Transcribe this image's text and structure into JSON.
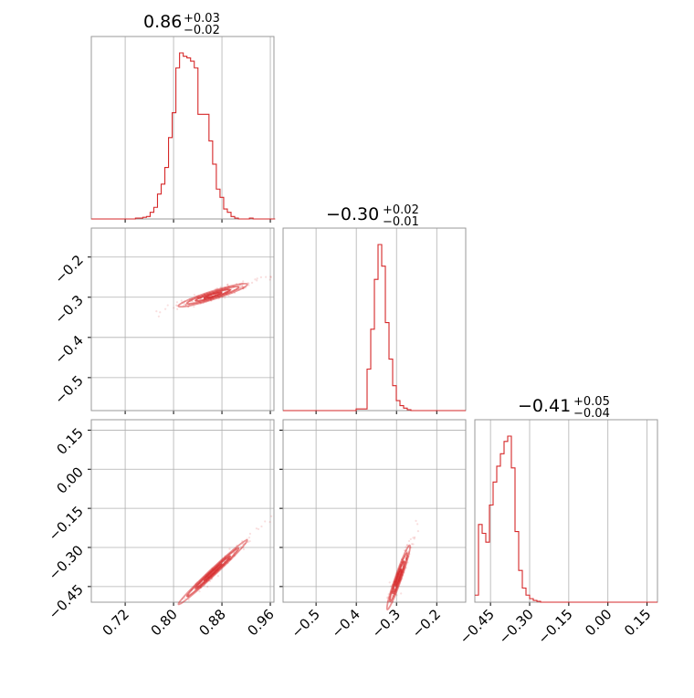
{
  "chart_data": {
    "type": "corner",
    "color": "#d62728",
    "grid": true,
    "parameters": [
      {
        "title_main": "0.86",
        "title_plus": "+0.03",
        "title_minus": "−0.02",
        "range": [
          0.664,
          0.966
        ],
        "ticks": [
          0.72,
          0.8,
          0.88,
          0.96
        ],
        "tick_labels": [
          "0.72",
          "0.80",
          "0.88",
          "0.96"
        ]
      },
      {
        "title_main": "−0.30",
        "title_plus": "+0.02",
        "title_minus": "−0.01",
        "range": [
          -0.582,
          -0.128
        ],
        "ticks": [
          -0.5,
          -0.4,
          -0.3,
          -0.2
        ],
        "tick_labels": [
          "−0.5",
          "−0.4",
          "−0.3",
          "−0.2"
        ]
      },
      {
        "title_main": "−0.41",
        "title_plus": "+0.05",
        "title_minus": "−0.04",
        "range": [
          -0.51,
          0.19
        ],
        "ticks": [
          -0.45,
          -0.3,
          -0.15,
          0.0,
          0.15
        ],
        "tick_labels": [
          "−0.45",
          "−0.30",
          "−0.15",
          "0.00",
          "0.15"
        ]
      }
    ],
    "histograms": [
      {
        "param": 0,
        "bin_edges": [
          0.664,
          0.968
        ],
        "n_bins": 50,
        "counts": [
          0,
          0,
          0,
          0,
          0,
          0,
          0,
          0,
          0,
          0,
          0,
          0,
          0.005,
          0.005,
          0.01,
          0.015,
          0.04,
          0.07,
          0.15,
          0.21,
          0.31,
          0.49,
          0.64,
          0.91,
          1.0,
          0.98,
          0.97,
          0.95,
          0.91,
          0.63,
          0.63,
          0.63,
          0.47,
          0.33,
          0.18,
          0.13,
          0.06,
          0.04,
          0.015,
          0.005,
          0,
          0,
          0,
          0.005,
          0,
          0,
          0,
          0,
          0,
          0
        ]
      },
      {
        "param": 1,
        "bin_edges": [
          -0.582,
          -0.128
        ],
        "n_bins": 50,
        "counts": [
          0,
          0,
          0,
          0,
          0,
          0,
          0,
          0,
          0,
          0,
          0,
          0,
          0,
          0,
          0,
          0,
          0,
          0,
          0,
          0,
          0.01,
          0.01,
          0.01,
          0.25,
          0.49,
          0.79,
          1.0,
          0.87,
          0.53,
          0.31,
          0.15,
          0.06,
          0.03,
          0.015,
          0.005,
          0,
          0,
          0,
          0,
          0,
          0,
          0,
          0,
          0,
          0,
          0,
          0,
          0,
          0,
          0
        ]
      },
      {
        "param": 2,
        "bin_edges": [
          -0.51,
          0.19
        ],
        "n_bins": 50,
        "counts": [
          0.04,
          0.44,
          0.39,
          0.34,
          0.55,
          0.68,
          0.77,
          0.84,
          0.91,
          0.94,
          0.76,
          0.4,
          0.18,
          0.08,
          0.04,
          0.02,
          0.01,
          0.005,
          0,
          0,
          0,
          0,
          0,
          0,
          0,
          0,
          0,
          0,
          0,
          0,
          0,
          0,
          0,
          0,
          0,
          0,
          0,
          0,
          0,
          0,
          0,
          0,
          0,
          0,
          0,
          0,
          0,
          0,
          0,
          0
        ]
      }
    ],
    "pairs": [
      {
        "x": 0,
        "y": 1,
        "center": [
          0.865,
          -0.295
        ],
        "cov": [
          [
            0.00081,
            0.00038
          ],
          [
            0.00038,
            0.000207
          ]
        ],
        "levels_sigma": [
          0.5,
          1.0,
          1.5,
          2.0
        ]
      },
      {
        "x": 0,
        "y": 2,
        "center": [
          0.865,
          -0.395
        ],
        "cov": [
          [
            0.00081,
            0.00174
          ],
          [
            0.00174,
            0.00381
          ]
        ],
        "levels_sigma": [
          0.5,
          1.0,
          1.5,
          2.0
        ]
      },
      {
        "x": 1,
        "y": 2,
        "center": [
          -0.295,
          -0.415
        ],
        "cov": [
          [
            0.000207,
            0.00085
          ],
          [
            0.00085,
            0.0038
          ]
        ],
        "levels_sigma": [
          0.5,
          1.0,
          1.5,
          2.0
        ]
      }
    ]
  }
}
